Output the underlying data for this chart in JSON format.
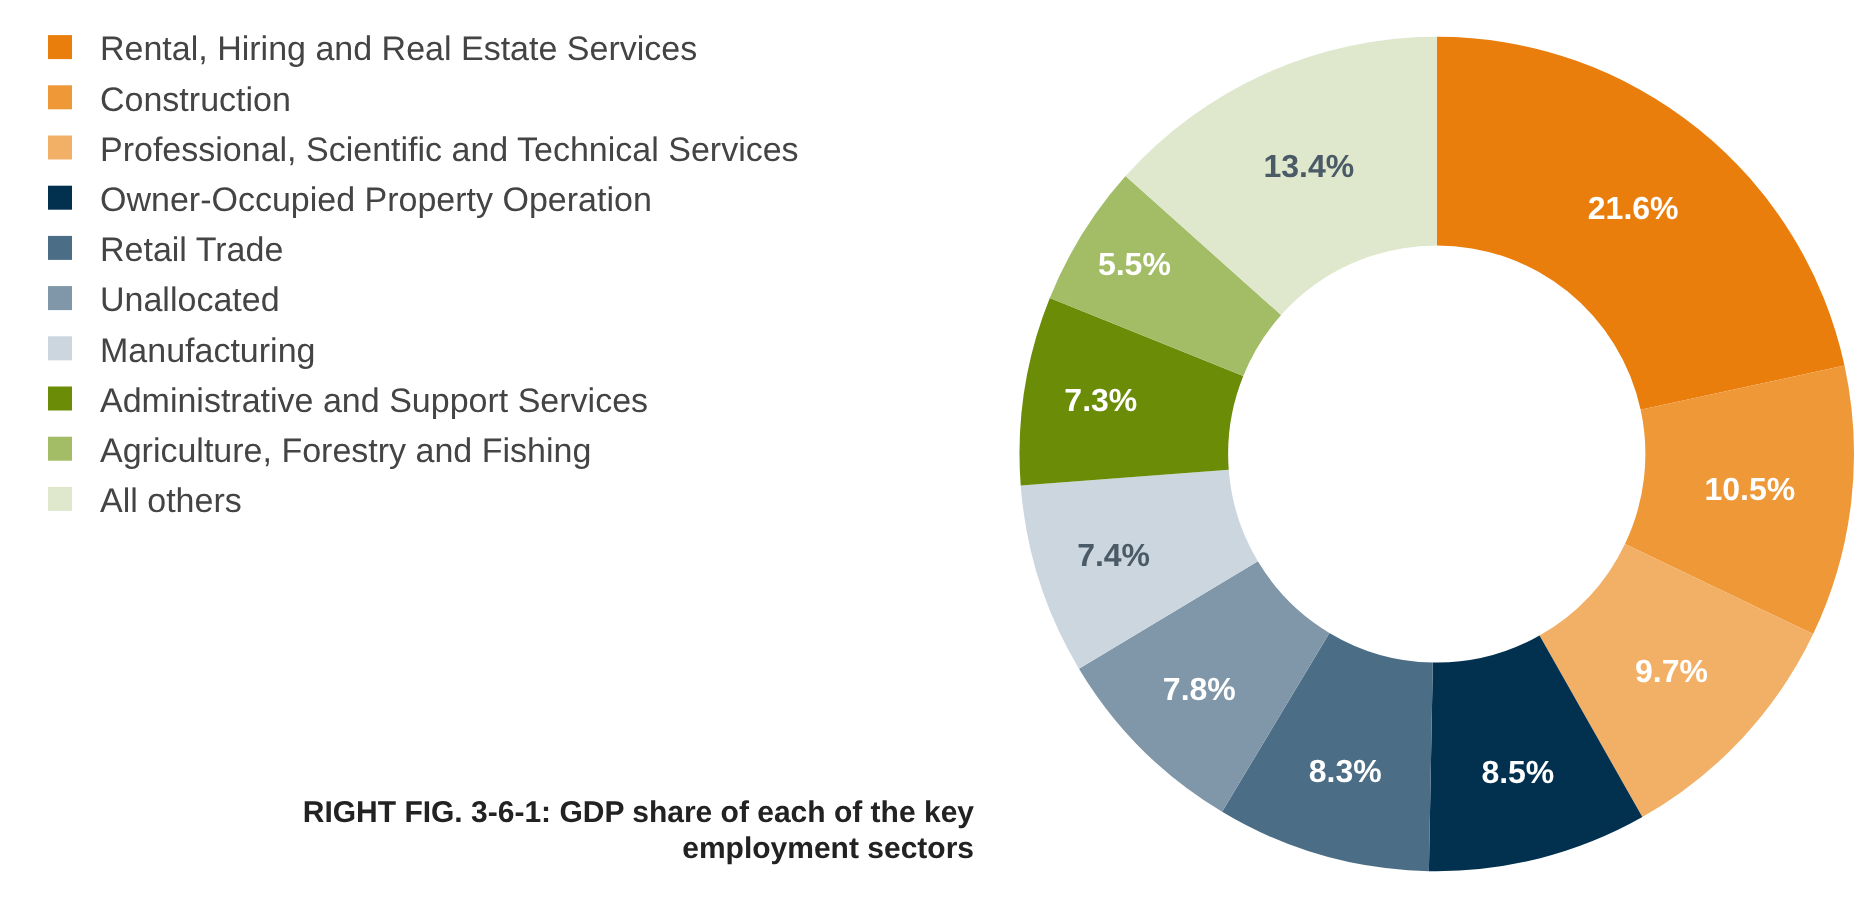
{
  "chart_data": {
    "type": "donut",
    "title": "RIGHT FIG. 3-6-1: GDP share of each of the key employment sectors",
    "categories": [
      "Rental, Hiring and Real Estate Services",
      "Construction",
      "Professional, Scientific and Technical Services",
      "Owner-Occupied Property Operation",
      "Retail Trade",
      "Unallocated",
      "Manufacturing",
      "Administrative and Support Services",
      "Agriculture, Forestry and Fishing",
      "All others"
    ],
    "values": [
      21.6,
      10.5,
      9.7,
      8.5,
      8.3,
      7.8,
      7.4,
      7.3,
      5.5,
      13.4
    ],
    "value_labels": [
      "21.6%",
      "10.5%",
      "9.7%",
      "8.5%",
      "8.3%",
      "7.8%",
      "7.4%",
      "7.3%",
      "5.5%",
      "13.4%"
    ],
    "colors": [
      "#e97e0c",
      "#ef9838",
      "#f2b066",
      "#023150",
      "#4c6d86",
      "#7f97a8",
      "#cbd6df",
      "#6a8c06",
      "#a2bd66",
      "#dfe8cc"
    ],
    "legend": "top left"
  }
}
